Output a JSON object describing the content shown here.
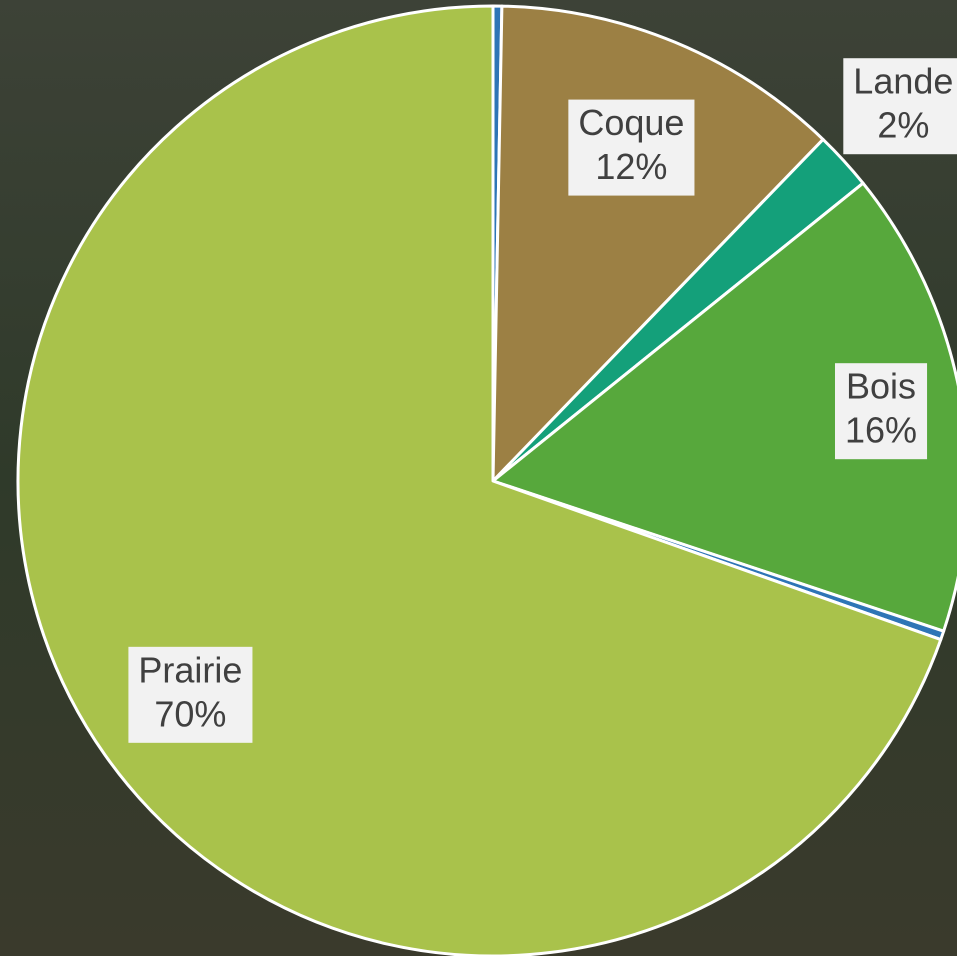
{
  "chart_data": {
    "type": "pie",
    "categories": [
      null,
      "Coque",
      "Lande",
      "Bois",
      null,
      "Prairie"
    ],
    "values": [
      0.3,
      12,
      2,
      16,
      0.3,
      70
    ],
    "value_labels": [
      null,
      "12%",
      "2%",
      "16%",
      null,
      "70%"
    ],
    "colors": [
      "#2e75b6",
      "#9c8044",
      "#14a07a",
      "#57a83c",
      "#2e75b6",
      "#a9c24b"
    ]
  }
}
